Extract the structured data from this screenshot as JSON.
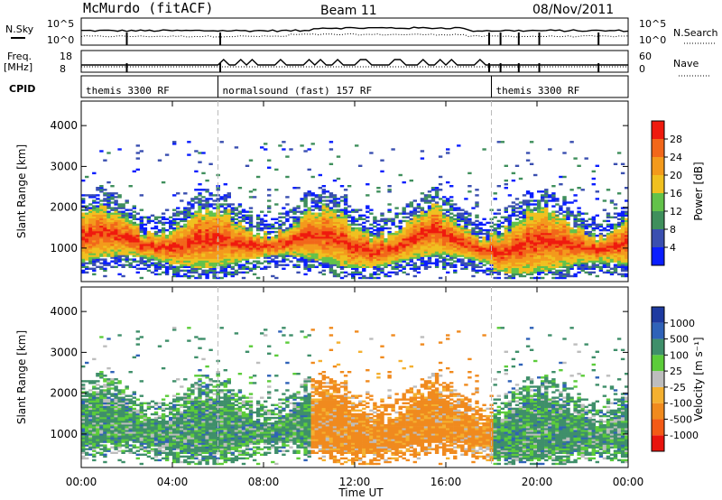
{
  "header": {
    "title": "McMurdo (fitACF)",
    "beam": "Beam 11",
    "date": "08/Nov/2011"
  },
  "left_labels": {
    "nsky": "N.Sky",
    "freq_line1": "Freq.",
    "freq_line2": "[MHz]",
    "cpid": "CPID"
  },
  "right_labels": {
    "nsearch": "N.Search",
    "nave": "Nave"
  },
  "noise_panel": {
    "left_ticks": [
      "10^5",
      "10^0"
    ],
    "right_ticks": [
      "10^5",
      "10^0"
    ]
  },
  "freq_panel": {
    "left_ticks": [
      "18",
      "8"
    ],
    "right_ticks": [
      "60",
      "0"
    ]
  },
  "cpid_segments": [
    {
      "label": "themis 3300 RF",
      "start_hour": 0
    },
    {
      "label": "normalsound (fast) 157 RF",
      "start_hour": 6
    },
    {
      "label": "themis 3300 RF",
      "start_hour": 18
    }
  ],
  "x_axis": {
    "label": "Time UT",
    "tick_labels": [
      "00:00",
      "04:00",
      "08:00",
      "12:00",
      "16:00",
      "20:00",
      "00:00"
    ],
    "tick_hours": [
      0,
      4,
      8,
      12,
      16,
      20,
      24
    ]
  },
  "power_panel": {
    "ylabel": "Slant Range [km]",
    "ytick_labels": [
      "1000",
      "2000",
      "3000",
      "4000"
    ],
    "cbar_label": "Power [dB]",
    "cbar_ticks": [
      "4",
      "8",
      "12",
      "16",
      "20",
      "24",
      "28"
    ],
    "cbar_colors": [
      "#0a1eff",
      "#3a4fb0",
      "#3f8f5c",
      "#63c24a",
      "#f0c020",
      "#f39a1c",
      "#f2671a",
      "#ef1a0e"
    ]
  },
  "velocity_panel": {
    "ylabel": "Slant Range [km]",
    "ytick_labels": [
      "1000",
      "2000",
      "3000",
      "4000"
    ],
    "cbar_label": "Velocity [m s⁻¹]",
    "cbar_ticks": [
      "1000",
      "500",
      "100",
      "25",
      "-25",
      "-100",
      "-500",
      "-1000"
    ],
    "cbar_colors": [
      "#1e3aa0",
      "#2f62b8",
      "#3f8f6a",
      "#5ccc3a",
      "#bdbdbd",
      "#f4b030",
      "#f08a1e",
      "#f35a16",
      "#e8140e"
    ]
  },
  "chart_data": [
    {
      "type": "heatmap",
      "title": "McMurdo (fitACF) Beam 11 08/Nov/2011",
      "xlabel": "Time UT",
      "ylabel": "Slant Range [km]",
      "xlim": [
        0,
        24
      ],
      "ylim": [
        180,
        4600
      ],
      "quantity": "Power [dB]",
      "colorbar_ticks": [
        4,
        8,
        12,
        16,
        20,
        24,
        28
      ],
      "main_echo_band": {
        "range_km_low": 600,
        "range_km_high": 1800,
        "peak_power_db": 28
      },
      "scatter_extent_km": [
        300,
        3500
      ]
    },
    {
      "type": "heatmap",
      "title": "McMurdo (fitACF) Beam 11 08/Nov/2011",
      "xlabel": "Time UT",
      "ylabel": "Slant Range [km]",
      "xlim": [
        0,
        24
      ],
      "ylim": [
        180,
        4600
      ],
      "quantity": "Velocity [m s-1]",
      "colorbar_ticks": [
        1000,
        500,
        100,
        25,
        -25,
        -100,
        -500,
        -1000
      ],
      "dominant_velocity": [
        {
          "hours": [
            0,
            10
          ],
          "sign": "positive",
          "value_range_ms": [
            100,
            500
          ]
        },
        {
          "hours": [
            10,
            18
          ],
          "sign": "negative",
          "value_range_ms": [
            -500,
            -100
          ]
        },
        {
          "hours": [
            18,
            24
          ],
          "sign": "positive",
          "value_range_ms": [
            25,
            500
          ]
        }
      ]
    }
  ]
}
